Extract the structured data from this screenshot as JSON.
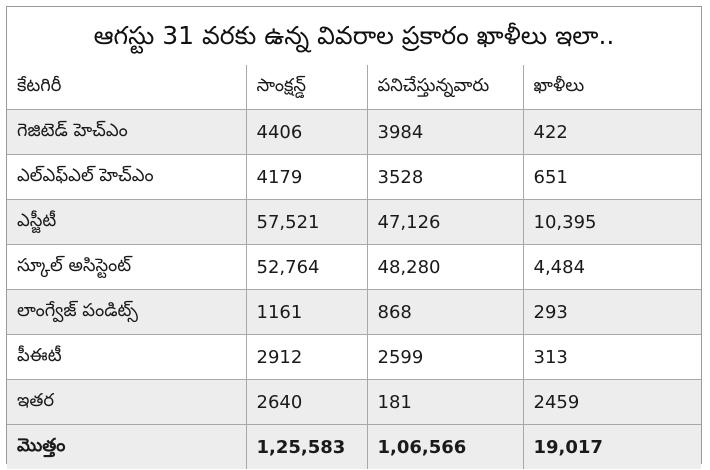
{
  "title": "ఆగస్టు 31 వరకు ఉన్న వివరాల ప్రకారం ఖాళీలు ఇలా..",
  "table": {
    "headers": [
      "కేటగిరీ",
      "సాంక్షన్డ్",
      "పనిచేస్తున్నవారు",
      "ఖాళీలు"
    ],
    "rows": [
      [
        "గెజిటెడ్ హెచ్ఎం",
        "4406",
        "3984",
        "422"
      ],
      [
        "ఎల్ఎఫ్ఎల్ హెచ్ఎం",
        "4179",
        "3528",
        "651"
      ],
      [
        "ఎస్జీటీ",
        "57,521",
        "47,126",
        "10,395"
      ],
      [
        "స్కూల్ అసిస్టెంట్",
        "52,764",
        "48,280",
        "4,484"
      ],
      [
        "లాంగ్వేజ్ పండిట్స్",
        "1161",
        "868",
        "293"
      ],
      [
        "పీఈటీ",
        "2912",
        "2599",
        "313"
      ],
      [
        "ఇతర",
        "2640",
        "181",
        "2459"
      ]
    ],
    "total": [
      "మొత్తం",
      "1,25,583",
      "1,06,566",
      "19,017"
    ]
  }
}
